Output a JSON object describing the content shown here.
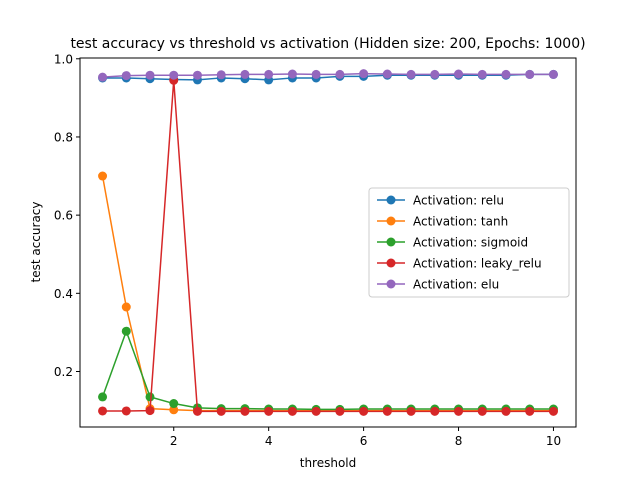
{
  "chart_data": {
    "type": "line",
    "title": "test accuracy vs threshold vs activation (Hidden size: 200, Epochs: 1000)",
    "xlabel": "threshold",
    "ylabel": "test accuracy",
    "xlim": [
      0.025,
      10.475
    ],
    "ylim": [
      0.058,
      1.002
    ],
    "xticks": [
      2,
      4,
      6,
      8,
      10
    ],
    "yticks": [
      0.2,
      0.4,
      0.6,
      0.8,
      1.0
    ],
    "xtick_labels": [
      "2",
      "4",
      "6",
      "8",
      "10"
    ],
    "ytick_labels": [
      "0.2",
      "0.4",
      "0.6",
      "0.8",
      "1.0"
    ],
    "grid": false,
    "legend_position": "center-right",
    "x": [
      0.5,
      1.0,
      1.5,
      2.0,
      2.5,
      3.0,
      3.5,
      4.0,
      4.5,
      5.0,
      5.5,
      6.0,
      6.5,
      7.0,
      7.5,
      8.0,
      8.5,
      9.0,
      9.5,
      10.0
    ],
    "series": [
      {
        "name": "Activation: relu",
        "color": "#1f77b4",
        "values": [
          0.951,
          0.951,
          0.949,
          0.947,
          0.946,
          0.951,
          0.949,
          0.946,
          0.951,
          0.951,
          0.955,
          0.955,
          0.958,
          0.958,
          0.958,
          0.958,
          0.958,
          0.958,
          0.96,
          0.96
        ]
      },
      {
        "name": "Activation: tanh",
        "color": "#ff7f0e",
        "values": [
          0.7,
          0.365,
          0.105,
          0.102,
          0.1,
          0.1,
          0.1,
          0.1,
          0.1,
          0.1,
          0.1,
          0.1,
          0.1,
          0.1,
          0.1,
          0.1,
          0.1,
          0.1,
          0.1,
          0.1
        ]
      },
      {
        "name": "Activation: sigmoid",
        "color": "#2ca02c",
        "values": [
          0.135,
          0.303,
          0.135,
          0.118,
          0.107,
          0.105,
          0.105,
          0.104,
          0.104,
          0.103,
          0.103,
          0.104,
          0.104,
          0.104,
          0.104,
          0.104,
          0.104,
          0.104,
          0.104,
          0.104
        ]
      },
      {
        "name": "Activation: leaky_relu",
        "color": "#d62728",
        "values": [
          0.099,
          0.099,
          0.1,
          0.945,
          0.098,
          0.098,
          0.098,
          0.098,
          0.098,
          0.098,
          0.098,
          0.098,
          0.098,
          0.098,
          0.098,
          0.098,
          0.098,
          0.098,
          0.098,
          0.098
        ]
      },
      {
        "name": "Activation: elu",
        "color": "#9467bd",
        "values": [
          0.953,
          0.957,
          0.958,
          0.958,
          0.958,
          0.959,
          0.96,
          0.96,
          0.961,
          0.96,
          0.96,
          0.962,
          0.961,
          0.96,
          0.96,
          0.961,
          0.96,
          0.96,
          0.96,
          0.96
        ]
      }
    ]
  }
}
